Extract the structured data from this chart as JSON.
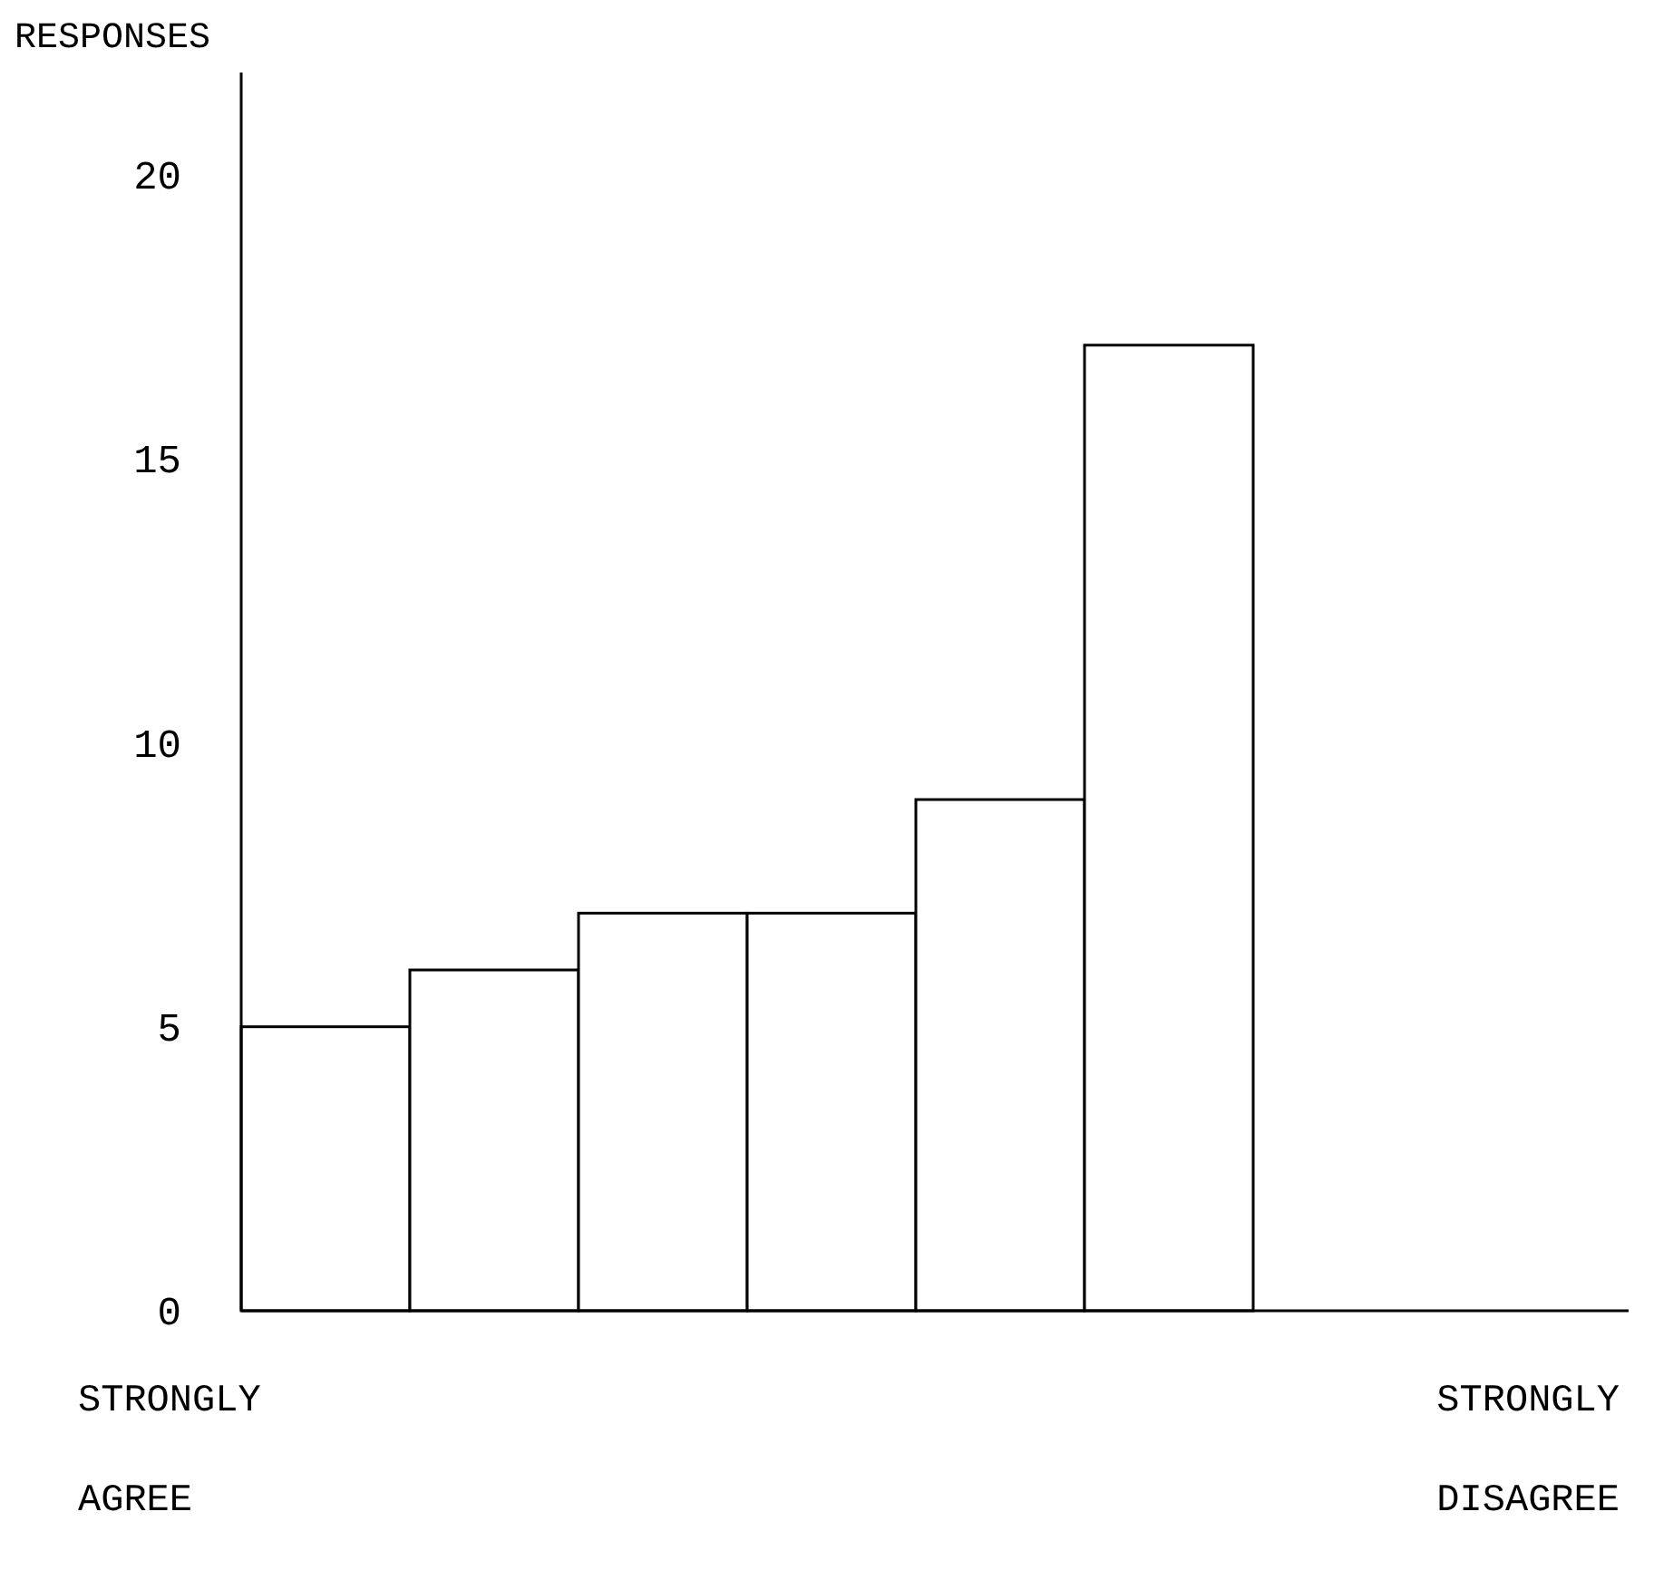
{
  "chart_data": {
    "type": "bar",
    "ylabel": "RESPONSES",
    "categories": [
      null,
      null,
      null,
      null,
      null,
      null,
      null,
      null
    ],
    "values": [
      5,
      6,
      7,
      7,
      9,
      17,
      null,
      null
    ],
    "color": "#ffffff",
    "ylim": [
      0,
      21.8
    ],
    "yticks": [
      0,
      5,
      10,
      15,
      20
    ],
    "grid": false,
    "annotations": [
      "STRONGLY AGREE",
      "STRONGLY DISAGREE"
    ]
  }
}
